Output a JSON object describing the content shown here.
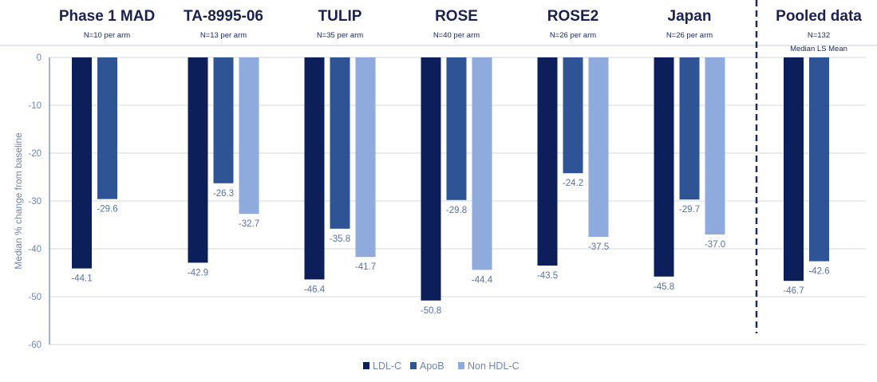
{
  "chart_data": {
    "type": "bar",
    "ylabel": "Median % change from baseline",
    "ylim": [
      -60,
      0
    ],
    "yticks": [
      0,
      -10,
      -20,
      -30,
      -40,
      -50,
      -60
    ],
    "series_colors": [
      "#0c1f5a",
      "#2e5496",
      "#8faadc"
    ],
    "groups": [
      {
        "title": "Phase 1 MAD",
        "subtitle": "N=10 per arm",
        "sublabel": "",
        "values": [
          -44.1,
          -29.6,
          null
        ],
        "labels": [
          "-44.1",
          "-29.6",
          ""
        ]
      },
      {
        "title": "TA-8995-06",
        "subtitle": "N=13 per arm",
        "sublabel": "",
        "values": [
          -42.9,
          -26.3,
          -32.7
        ],
        "labels": [
          "-42.9",
          "-26.3",
          "-32.7"
        ]
      },
      {
        "title": "TULIP",
        "subtitle": "N=35 per arm",
        "sublabel": "",
        "values": [
          -46.4,
          -35.8,
          -41.7
        ],
        "labels": [
          "-46.4",
          "-35.8",
          "-41.7"
        ]
      },
      {
        "title": "ROSE",
        "subtitle": "N=40 per arm",
        "sublabel": "",
        "values": [
          -50.8,
          -29.8,
          -44.4
        ],
        "labels": [
          "-50.8",
          "-29.8",
          "-44.4"
        ]
      },
      {
        "title": "ROSE2",
        "subtitle": "N=26 per arm",
        "sublabel": "",
        "values": [
          -43.5,
          -24.2,
          -37.5
        ],
        "labels": [
          "-43.5",
          "-24.2",
          "-37.5"
        ]
      },
      {
        "title": "Japan",
        "subtitle": "N=26 per arm",
        "sublabel": "",
        "values": [
          -45.8,
          -29.7,
          -37.0
        ],
        "labels": [
          "-45.8",
          "-29.7",
          "-37.0"
        ]
      },
      {
        "title": "Pooled data",
        "subtitle": "N=132",
        "sublabel": "Median LS Mean",
        "values": [
          -46.7,
          -42.6,
          null
        ],
        "labels": [
          "-46.7",
          "-42.6",
          ""
        ]
      }
    ],
    "legend": [
      "LDL-C",
      "ApoB",
      "Non HDL-C"
    ]
  }
}
